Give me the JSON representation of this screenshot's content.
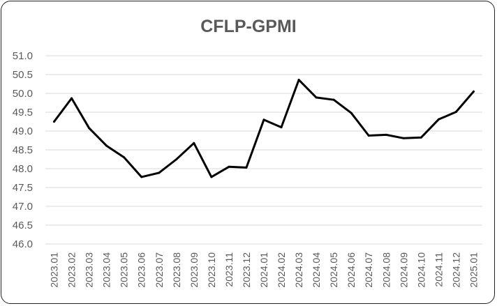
{
  "chart_data": {
    "type": "line",
    "title": "CFLP-GPMI",
    "xlabel": "",
    "ylabel": "",
    "ylim": [
      46.0,
      51.0
    ],
    "yticks": [
      "46.0",
      "46.5",
      "47.0",
      "47.5",
      "48.0",
      "48.5",
      "49.0",
      "49.5",
      "50.0",
      "50.5",
      "51.0"
    ],
    "grid": true,
    "legend": "none",
    "line_color": "#000000",
    "categories": [
      "2023.01",
      "2023.02",
      "2023.03",
      "2023.04",
      "2023.05",
      "2023.06",
      "2023.07",
      "2023.08",
      "2023.09",
      "2023.10",
      "2023.11",
      "2023.12",
      "2024.01",
      "2024.02",
      "2024.03",
      "2024.04",
      "2024.05",
      "2024.06",
      "2024.07",
      "2024.08",
      "2024.09",
      "2024.10",
      "2024.11",
      "2024.12",
      "2025.01"
    ],
    "series": [
      {
        "values": [
          49.25,
          49.87,
          49.08,
          48.61,
          48.3,
          47.78,
          47.89,
          48.25,
          48.68,
          47.78,
          48.05,
          48.03,
          49.3,
          49.1,
          50.36,
          49.89,
          49.83,
          49.48,
          48.88,
          48.9,
          48.81,
          48.83,
          49.31,
          49.51,
          50.05
        ]
      }
    ]
  }
}
